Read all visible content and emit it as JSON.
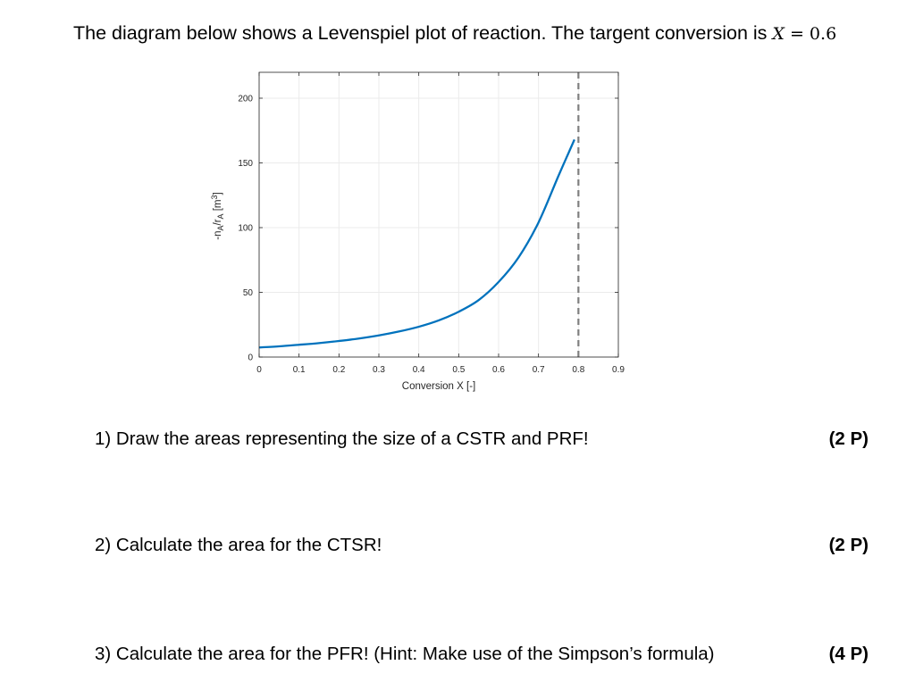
{
  "intro": {
    "text": "The diagram below shows a Levenspiel plot of reaction. The targent conversion is ",
    "math_var": "X",
    "math_rest": " = 0.6"
  },
  "chart_data": {
    "type": "line",
    "title": "",
    "xlabel": "Conversion X [-]",
    "ylabel_parts": [
      "-n",
      "A",
      "/r",
      "A",
      " [m",
      "3",
      "]"
    ],
    "xlim": [
      0,
      0.9
    ],
    "ylim": [
      0,
      220
    ],
    "xticks": [
      0,
      0.1,
      0.2,
      0.3,
      0.4,
      0.5,
      0.6,
      0.7,
      0.8,
      0.9
    ],
    "xtick_labels": [
      "0",
      "0.1",
      "0.2",
      "0.3",
      "0.4",
      "0.5",
      "0.6",
      "0.7",
      "0.8",
      "0.9"
    ],
    "yticks": [
      0,
      50,
      100,
      150,
      200
    ],
    "ytick_labels": [
      "0",
      "50",
      "100",
      "150",
      "200"
    ],
    "grid": true,
    "series": [
      {
        "color": "#0072BD",
        "x": [
          0,
          0.05,
          0.1,
          0.15,
          0.2,
          0.25,
          0.3,
          0.35,
          0.4,
          0.45,
          0.5,
          0.55,
          0.6,
          0.65,
          0.7,
          0.75,
          0.79
        ],
        "y": [
          7.4,
          8.3,
          9.5,
          10.8,
          12.4,
          14.3,
          16.7,
          19.7,
          23.4,
          28.3,
          35,
          44,
          58,
          77,
          104,
          140,
          168
        ]
      }
    ],
    "vline": {
      "x": 0.8,
      "color": "#7f7f7f",
      "style": "dashed"
    }
  },
  "questions": [
    {
      "text": "1)  Draw the areas representing the size of a CSTR and PRF!",
      "points": "(2 P)"
    },
    {
      "text": "2)  Calculate the area for the CTSR!",
      "points": "(2 P)"
    },
    {
      "text": "3)  Calculate the area for the PFR! (Hint: Make use of the Simpson’s formula)",
      "points": "(4 P)"
    }
  ]
}
